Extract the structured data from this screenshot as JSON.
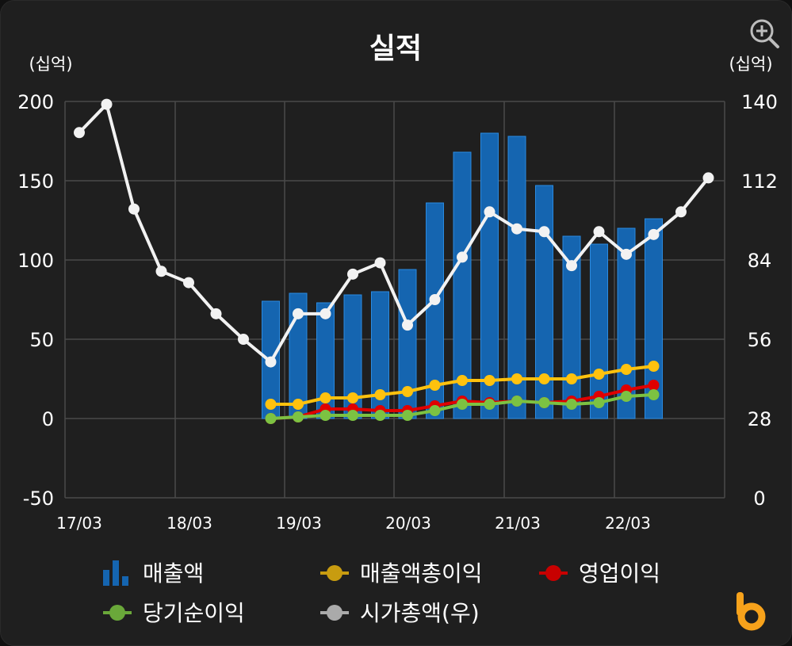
{
  "chart_data": {
    "type": "bar+line",
    "title": "실적",
    "y_left_unit": "(십억)",
    "y_right_unit": "(십억)",
    "y_left_range": [
      -50,
      200
    ],
    "y_left_ticks": [
      "200",
      "150",
      "100",
      "50",
      "0",
      "-50"
    ],
    "y_right_range": [
      0,
      140
    ],
    "y_right_ticks": [
      "140",
      "112",
      "84",
      "56",
      "28",
      "0"
    ],
    "x_tick_labels": [
      "17/03",
      "18/03",
      "19/03",
      "20/03",
      "21/03",
      "22/03"
    ],
    "grid": true,
    "bar_series": {
      "name": "매출액",
      "color": "#1565b0",
      "values": [
        74,
        79,
        73,
        78,
        80,
        94,
        136,
        168,
        180,
        178,
        147,
        115,
        110,
        120,
        126
      ]
    },
    "line_series": [
      {
        "name": "매출액총이익",
        "color": "#ffc20e",
        "values": [
          9,
          9,
          13,
          13,
          15,
          17,
          21,
          24,
          24,
          25,
          25,
          25,
          28,
          31,
          33
        ]
      },
      {
        "name": "영업이익",
        "color": "#e00000",
        "values": [
          0,
          1,
          6,
          6,
          5,
          5,
          8,
          11,
          10,
          11,
          10,
          11,
          14,
          18,
          21
        ]
      },
      {
        "name": "당기순이익",
        "color": "#7cc242",
        "values": [
          0,
          1,
          2,
          2,
          2,
          2,
          5,
          9,
          9,
          11,
          10,
          9,
          10,
          14,
          15
        ]
      },
      {
        "name": "시가총액(우)",
        "color": "#f2f2f2",
        "axis": "right",
        "values": [
          129,
          139,
          102,
          80,
          76,
          65,
          56,
          48,
          65,
          65,
          79,
          83,
          61,
          70,
          85,
          101,
          95,
          94,
          82,
          94,
          86,
          93,
          101,
          113
        ]
      }
    ],
    "legend": [
      "매출액",
      "매출액총이익",
      "영업이익",
      "당기순이익",
      "시가총액(우)"
    ],
    "legend_position": "bottom"
  }
}
